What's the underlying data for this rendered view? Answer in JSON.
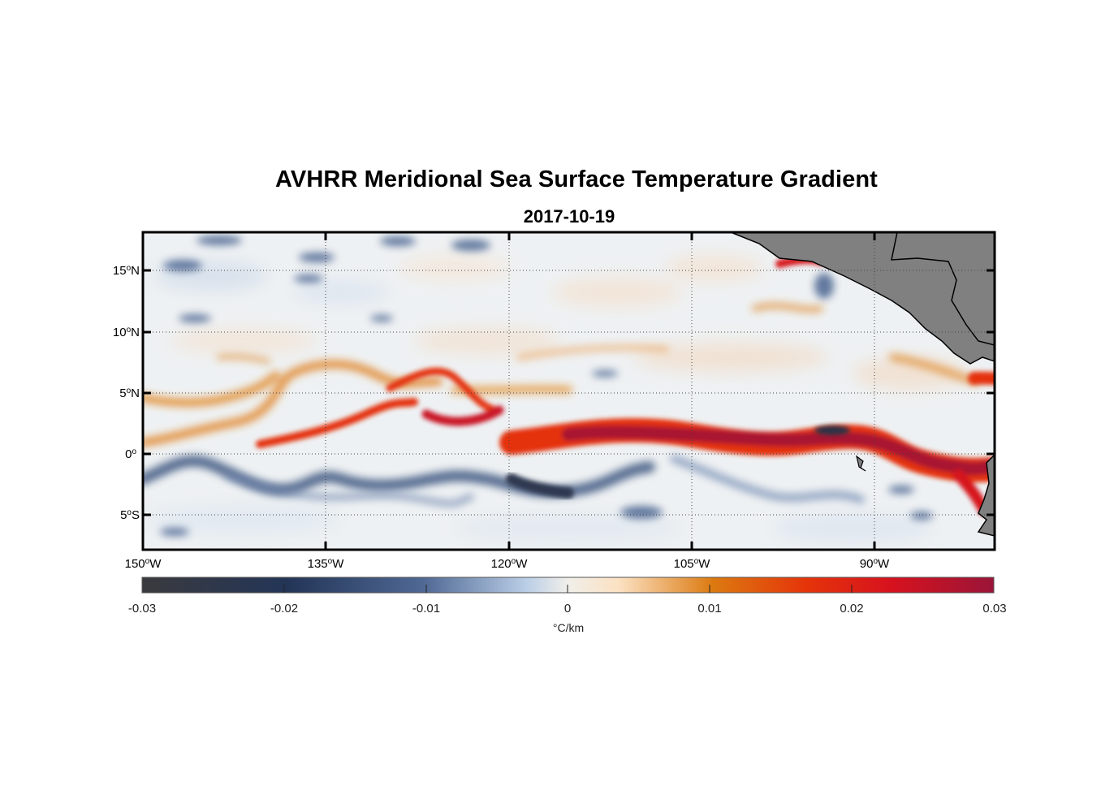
{
  "title": "AVHRR Meridional Sea Surface Temperature Gradient",
  "subtitle": "2017-10-19",
  "map": {
    "lon_range": [
      -150,
      -80
    ],
    "lat_range": [
      -8,
      18
    ],
    "lat_ticks": [
      {
        "value": 15,
        "num": "15",
        "hemi": "N"
      },
      {
        "value": 10,
        "num": "10",
        "hemi": "N"
      },
      {
        "value": 5,
        "num": "5",
        "hemi": "N"
      },
      {
        "value": 0,
        "num": "0",
        "hemi": ""
      },
      {
        "value": -5,
        "num": "5",
        "hemi": "S"
      }
    ],
    "lon_ticks": [
      {
        "value": -150,
        "num": "150",
        "hemi": "W"
      },
      {
        "value": -135,
        "num": "135",
        "hemi": "W"
      },
      {
        "value": -120,
        "num": "120",
        "hemi": "W"
      },
      {
        "value": -105,
        "num": "105",
        "hemi": "W"
      },
      {
        "value": -90,
        "num": "90",
        "hemi": "W"
      }
    ],
    "degree_symbol": "o",
    "grid": true,
    "land_color": "#808080",
    "features": {
      "equatorial_front": "strong positive gradient band along ~0-3°N, from 125°W to the coast",
      "southern_band": "negative gradient band along ~1-3°S from 150°W to 115°W"
    }
  },
  "colorbar": {
    "min": -0.03,
    "max": 0.03,
    "ticks": [
      "-0.03",
      "-0.02",
      "-0.01",
      "0",
      "0.01",
      "0.02",
      "0.03"
    ],
    "unit": "°C/km",
    "colors": [
      "#3a3a3e",
      "#233557",
      "#4f6894",
      "#b9cde6",
      "#f1efea",
      "#fbe1c2",
      "#dc7a10",
      "#e5340a",
      "#d6121e",
      "#9a1538"
    ]
  }
}
